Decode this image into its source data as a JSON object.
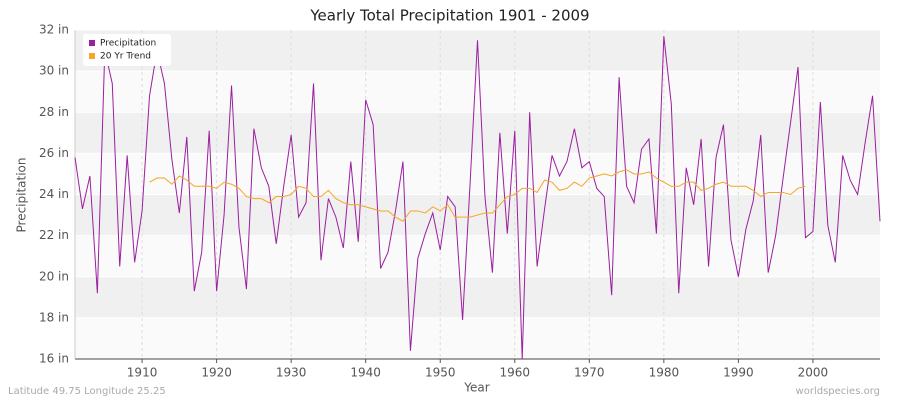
{
  "chart_data": {
    "type": "line",
    "title": "Yearly Total Precipitation 1901 - 2009",
    "x_label": "Year",
    "y_label": "Precipitation",
    "footer_left": "Latitude 49.75 Longitude 25.25",
    "footer_right": "worldspecies.org",
    "legend": "top-left",
    "grid": true,
    "x": [
      1901,
      1902,
      1903,
      1904,
      1905,
      1906,
      1907,
      1908,
      1909,
      1910,
      1911,
      1912,
      1913,
      1914,
      1915,
      1916,
      1917,
      1918,
      1919,
      1920,
      1921,
      1922,
      1923,
      1924,
      1925,
      1926,
      1927,
      1928,
      1929,
      1930,
      1931,
      1932,
      1933,
      1934,
      1935,
      1936,
      1937,
      1938,
      1939,
      1940,
      1941,
      1942,
      1943,
      1944,
      1945,
      1946,
      1947,
      1948,
      1949,
      1950,
      1951,
      1952,
      1953,
      1954,
      1955,
      1956,
      1957,
      1958,
      1959,
      1960,
      1961,
      1962,
      1963,
      1964,
      1965,
      1966,
      1967,
      1968,
      1969,
      1970,
      1971,
      1972,
      1973,
      1974,
      1975,
      1976,
      1977,
      1978,
      1979,
      1980,
      1981,
      1982,
      1983,
      1984,
      1985,
      1986,
      1987,
      1988,
      1989,
      1990,
      1991,
      1992,
      1993,
      1994,
      1995,
      1996,
      1997,
      1998,
      1999,
      2000,
      2001,
      2002,
      2003,
      2004,
      2005,
      2006,
      2007,
      2008,
      2009
    ],
    "series": [
      {
        "name": "Precipitation",
        "color": "#9b1fa0",
        "values": [
          25.8,
          23.3,
          24.9,
          19.2,
          31.0,
          29.4,
          20.5,
          25.9,
          20.7,
          23.2,
          28.8,
          31.0,
          29.4,
          25.7,
          23.1,
          26.8,
          19.3,
          21.2,
          27.1,
          19.3,
          23.0,
          29.3,
          22.4,
          19.4,
          27.2,
          25.3,
          24.4,
          21.6,
          24.4,
          26.9,
          22.9,
          23.6,
          29.4,
          20.8,
          23.8,
          22.9,
          21.4,
          25.6,
          21.7,
          28.6,
          27.4,
          20.4,
          21.2,
          23.2,
          25.6,
          16.4,
          20.9,
          22.1,
          23.1,
          21.3,
          23.9,
          23.4,
          17.9,
          24.5,
          31.5,
          23.9,
          20.2,
          27.0,
          22.1,
          27.1,
          16.0,
          28.0,
          20.5,
          23.3,
          25.9,
          24.9,
          25.6,
          27.2,
          25.3,
          25.6,
          24.3,
          23.9,
          19.1,
          29.7,
          24.4,
          23.6,
          26.2,
          26.7,
          22.1,
          31.7,
          28.4,
          19.2,
          25.3,
          23.5,
          26.7,
          20.5,
          25.8,
          27.4,
          21.8,
          20.0,
          22.3,
          23.7,
          26.9,
          20.2,
          22.0,
          24.8,
          27.5,
          30.2,
          21.9,
          22.2,
          28.5,
          22.5,
          20.7,
          25.9,
          24.7,
          24.0,
          26.5,
          28.8,
          22.7
        ]
      },
      {
        "name": "20 Yr Trend",
        "color": "#f5a623",
        "values": [
          null,
          null,
          null,
          null,
          null,
          null,
          null,
          null,
          null,
          null,
          24.6,
          24.8,
          24.8,
          24.5,
          24.9,
          24.7,
          24.4,
          24.4,
          24.4,
          24.3,
          24.6,
          24.5,
          24.3,
          23.9,
          23.8,
          23.8,
          23.6,
          23.9,
          23.9,
          24.0,
          24.4,
          24.3,
          23.9,
          23.9,
          24.2,
          23.8,
          23.6,
          23.5,
          23.5,
          23.4,
          23.3,
          23.2,
          23.2,
          22.9,
          22.7,
          23.2,
          23.2,
          23.1,
          23.4,
          23.2,
          23.5,
          22.9,
          22.9,
          22.9,
          23.0,
          23.1,
          23.1,
          23.5,
          23.9,
          24.0,
          24.3,
          24.3,
          24.1,
          24.7,
          24.6,
          24.2,
          24.3,
          24.6,
          24.4,
          24.8,
          24.9,
          25.0,
          24.9,
          25.1,
          25.2,
          25.0,
          25.0,
          25.1,
          24.8,
          24.6,
          24.4,
          24.4,
          24.6,
          24.6,
          24.2,
          24.3,
          24.5,
          24.6,
          24.4,
          24.4,
          24.4,
          24.2,
          23.9,
          24.1,
          24.1,
          24.1,
          24.0,
          24.3,
          24.4,
          null,
          null,
          null,
          null,
          null,
          null,
          null,
          null,
          null,
          null
        ]
      }
    ],
    "xlim": [
      1901,
      2009
    ],
    "xticks": [
      1910,
      1920,
      1930,
      1940,
      1950,
      1960,
      1970,
      1980,
      1990,
      2000
    ],
    "ylim": [
      16,
      32
    ],
    "yticks": [
      {
        "value": 16,
        "label": "16 in"
      },
      {
        "value": 18,
        "label": "18 in"
      },
      {
        "value": 20,
        "label": "20 in"
      },
      {
        "value": 22,
        "label": "22 in"
      },
      {
        "value": 24,
        "label": "24 in"
      },
      {
        "value": 26,
        "label": "26 in"
      },
      {
        "value": 28,
        "label": "28 in"
      },
      {
        "value": 30,
        "label": "30 in"
      },
      {
        "value": 32,
        "label": "32 in"
      }
    ]
  }
}
